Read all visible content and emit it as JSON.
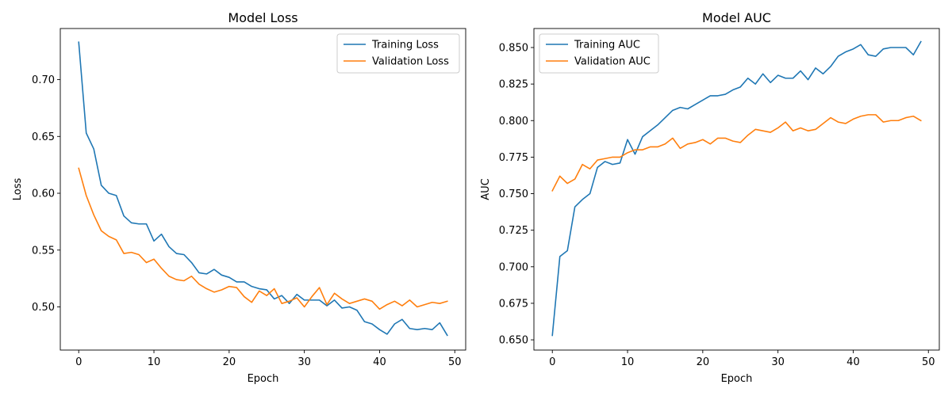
{
  "chart_data": [
    {
      "type": "line",
      "title": "Model Loss",
      "xlabel": "Epoch",
      "ylabel": "Loss",
      "xlim": [
        -2.45,
        51.45
      ],
      "ylim": [
        0.462,
        0.745
      ],
      "xticks": [
        0,
        10,
        20,
        30,
        40,
        50
      ],
      "yticks": [
        0.5,
        0.55,
        0.6,
        0.65,
        0.7
      ],
      "ytick_labels": [
        "0.50",
        "0.55",
        "0.60",
        "0.65",
        "0.70"
      ],
      "legend_position": "top-right",
      "grid": false,
      "x": [
        0,
        1,
        2,
        3,
        4,
        5,
        6,
        7,
        8,
        9,
        10,
        11,
        12,
        13,
        14,
        15,
        16,
        17,
        18,
        19,
        20,
        21,
        22,
        23,
        24,
        25,
        26,
        27,
        28,
        29,
        30,
        31,
        32,
        33,
        34,
        35,
        36,
        37,
        38,
        39,
        40,
        41,
        42,
        43,
        44,
        45,
        46,
        47,
        48,
        49
      ],
      "series": [
        {
          "name": "Training Loss",
          "color": "#1f77b4",
          "values": [
            0.733,
            0.653,
            0.639,
            0.607,
            0.6,
            0.598,
            0.58,
            0.574,
            0.573,
            0.573,
            0.558,
            0.564,
            0.553,
            0.547,
            0.546,
            0.539,
            0.53,
            0.529,
            0.533,
            0.528,
            0.526,
            0.522,
            0.522,
            0.518,
            0.516,
            0.515,
            0.507,
            0.51,
            0.503,
            0.511,
            0.506,
            0.506,
            0.506,
            0.501,
            0.506,
            0.499,
            0.5,
            0.497,
            0.487,
            0.485,
            0.48,
            0.476,
            0.485,
            0.489,
            0.481,
            0.48,
            0.481,
            0.48,
            0.486,
            0.475
          ]
        },
        {
          "name": "Validation Loss",
          "color": "#ff7f0e",
          "values": [
            0.622,
            0.598,
            0.581,
            0.567,
            0.562,
            0.559,
            0.547,
            0.548,
            0.546,
            0.539,
            0.542,
            0.534,
            0.527,
            0.524,
            0.523,
            0.527,
            0.52,
            0.516,
            0.513,
            0.515,
            0.518,
            0.517,
            0.509,
            0.504,
            0.514,
            0.51,
            0.516,
            0.503,
            0.505,
            0.508,
            0.5,
            0.509,
            0.517,
            0.502,
            0.512,
            0.507,
            0.503,
            0.505,
            0.507,
            0.505,
            0.498,
            0.502,
            0.505,
            0.501,
            0.506,
            0.5,
            0.502,
            0.504,
            0.503,
            0.505
          ]
        }
      ]
    },
    {
      "type": "line",
      "title": "Model AUC",
      "xlabel": "Epoch",
      "ylabel": "AUC",
      "xlim": [
        -2.45,
        51.45
      ],
      "ylim": [
        0.643,
        0.863
      ],
      "xticks": [
        0,
        10,
        20,
        30,
        40,
        50
      ],
      "yticks": [
        0.65,
        0.675,
        0.7,
        0.725,
        0.75,
        0.775,
        0.8,
        0.825,
        0.85
      ],
      "ytick_labels": [
        "0.650",
        "0.675",
        "0.700",
        "0.725",
        "0.750",
        "0.775",
        "0.800",
        "0.825",
        "0.850"
      ],
      "legend_position": "top-left",
      "grid": false,
      "x": [
        0,
        1,
        2,
        3,
        4,
        5,
        6,
        7,
        8,
        9,
        10,
        11,
        12,
        13,
        14,
        15,
        16,
        17,
        18,
        19,
        20,
        21,
        22,
        23,
        24,
        25,
        26,
        27,
        28,
        29,
        30,
        31,
        32,
        33,
        34,
        35,
        36,
        37,
        38,
        39,
        40,
        41,
        42,
        43,
        44,
        45,
        46,
        47,
        48,
        49
      ],
      "series": [
        {
          "name": "Training AUC",
          "color": "#1f77b4",
          "values": [
            0.653,
            0.707,
            0.711,
            0.741,
            0.746,
            0.75,
            0.768,
            0.772,
            0.77,
            0.771,
            0.787,
            0.777,
            0.789,
            0.793,
            0.797,
            0.802,
            0.807,
            0.809,
            0.808,
            0.811,
            0.814,
            0.817,
            0.817,
            0.818,
            0.821,
            0.823,
            0.829,
            0.825,
            0.832,
            0.826,
            0.831,
            0.829,
            0.829,
            0.834,
            0.828,
            0.836,
            0.832,
            0.837,
            0.844,
            0.847,
            0.849,
            0.852,
            0.845,
            0.844,
            0.849,
            0.85,
            0.85,
            0.85,
            0.845,
            0.854
          ]
        },
        {
          "name": "Validation AUC",
          "color": "#ff7f0e",
          "values": [
            0.752,
            0.762,
            0.757,
            0.76,
            0.77,
            0.767,
            0.773,
            0.774,
            0.775,
            0.775,
            0.778,
            0.78,
            0.78,
            0.782,
            0.782,
            0.784,
            0.788,
            0.781,
            0.784,
            0.785,
            0.787,
            0.784,
            0.788,
            0.788,
            0.786,
            0.785,
            0.79,
            0.794,
            0.793,
            0.792,
            0.795,
            0.799,
            0.793,
            0.795,
            0.793,
            0.794,
            0.798,
            0.802,
            0.799,
            0.798,
            0.801,
            0.803,
            0.804,
            0.804,
            0.799,
            0.8,
            0.8,
            0.802,
            0.803,
            0.8
          ]
        }
      ]
    }
  ]
}
